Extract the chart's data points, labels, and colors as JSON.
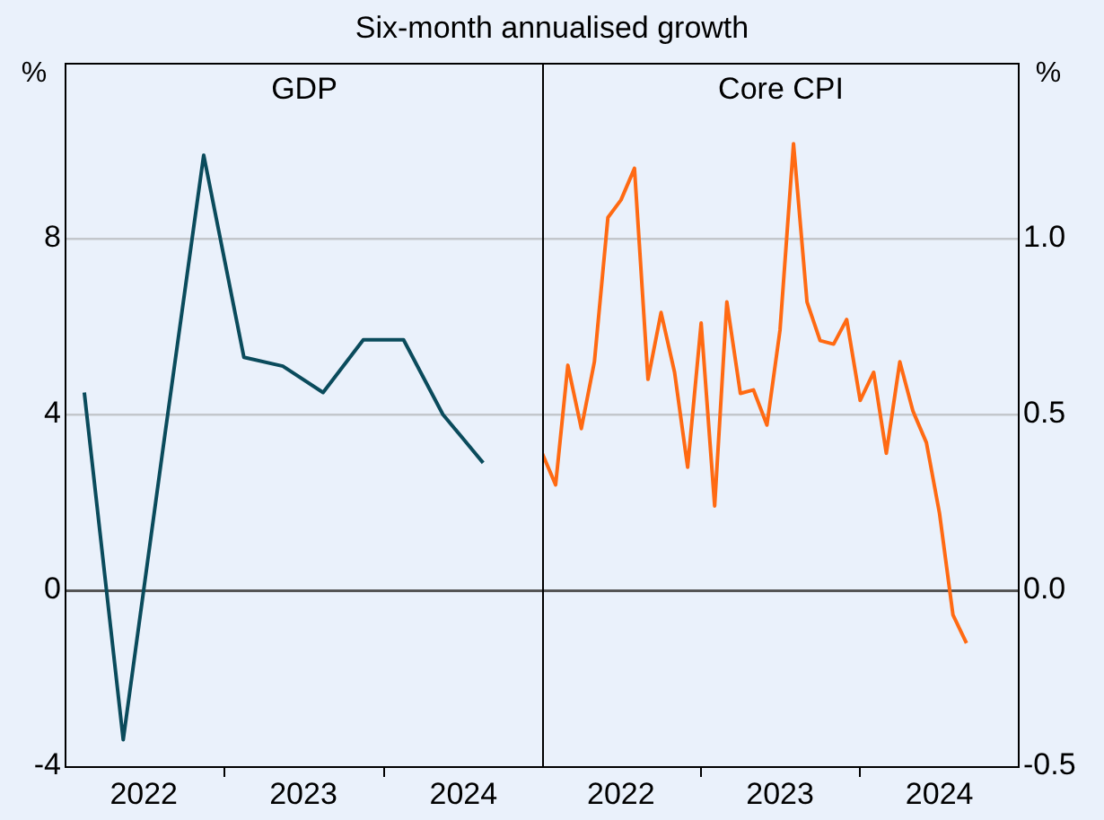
{
  "chart_data": [
    {
      "type": "line",
      "subtitle": "Six-month annualised growth",
      "title": "GDP",
      "ylabel": "%",
      "x": [
        "2022-02-15",
        "2022-05-15",
        "2022-08-15",
        "2022-11-15",
        "2023-02-15",
        "2023-05-15",
        "2023-08-15",
        "2023-11-15",
        "2024-02-15",
        "2024-05-15",
        "2024-08-15"
      ],
      "series": [
        {
          "color": "#0a4b5c",
          "values": [
            4.5,
            -3.4,
            3.3,
            9.9,
            5.3,
            5.1,
            4.5,
            5.7,
            5.7,
            4.0,
            2.9
          ]
        }
      ],
      "xlim": [
        "2022-01",
        "2025-01"
      ],
      "xticks": [
        {
          "value": "2022-07",
          "label": "2022"
        },
        {
          "value": "2023-01",
          "label": null
        },
        {
          "value": "2023-07",
          "label": "2023"
        },
        {
          "value": "2024-01",
          "label": null
        },
        {
          "value": "2024-07",
          "label": "2024"
        }
      ],
      "ylim": [
        -4,
        12
      ],
      "yticks": [
        -4,
        0,
        4,
        8
      ],
      "grid": "y",
      "legend": false,
      "marker": "none",
      "line_style": "solid"
    },
    {
      "type": "line",
      "title": "Core CPI",
      "ylabel": "%",
      "x": [
        "2022-01",
        "2022-02",
        "2022-03",
        "2022-04",
        "2022-05",
        "2022-06",
        "2022-07",
        "2022-08",
        "2022-09",
        "2022-10",
        "2022-11",
        "2022-12",
        "2023-01",
        "2023-02",
        "2023-03",
        "2023-04",
        "2023-05",
        "2023-06",
        "2023-07",
        "2023-08",
        "2023-09",
        "2023-10",
        "2023-11",
        "2023-12",
        "2024-01",
        "2024-02",
        "2024-03",
        "2024-04",
        "2024-05",
        "2024-06",
        "2024-07",
        "2024-08",
        "2024-09"
      ],
      "series": [
        {
          "color": "#ff6a13",
          "values": [
            0.39,
            0.3,
            0.64,
            0.46,
            0.65,
            1.06,
            1.11,
            1.2,
            0.6,
            0.79,
            0.62,
            0.35,
            0.76,
            0.24,
            0.82,
            0.56,
            0.57,
            0.47,
            0.74,
            1.27,
            0.82,
            0.71,
            0.7,
            0.77,
            0.54,
            0.62,
            0.39,
            0.65,
            0.51,
            0.42,
            0.22,
            -0.07,
            -0.15
          ]
        }
      ],
      "xlim": [
        "2022-01",
        "2025-01"
      ],
      "xticks": [
        {
          "value": "2022-07",
          "label": "2022"
        },
        {
          "value": "2023-01",
          "label": null
        },
        {
          "value": "2023-07",
          "label": "2023"
        },
        {
          "value": "2024-01",
          "label": null
        },
        {
          "value": "2024-07",
          "label": "2024"
        }
      ],
      "ylim": [
        -0.5,
        1.5
      ],
      "yticks": [
        {
          "value": -0.5,
          "label": "-0.5"
        },
        {
          "value": 0,
          "label": "0.0"
        },
        0.5,
        {
          "value": 1,
          "label": "1.0"
        }
      ],
      "grid": "y",
      "legend": false,
      "marker": "none",
      "line_style": "solid"
    }
  ]
}
